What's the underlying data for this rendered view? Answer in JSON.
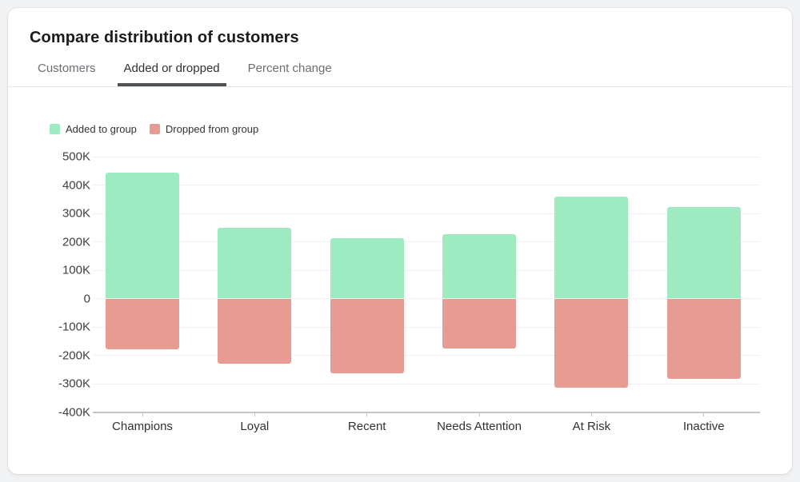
{
  "card": {
    "title": "Compare distribution of customers"
  },
  "tabs": {
    "items": [
      {
        "label": "Customers",
        "active": false
      },
      {
        "label": "Added or dropped",
        "active": true
      },
      {
        "label": "Percent change",
        "active": false
      }
    ]
  },
  "chart_data": {
    "type": "bar",
    "bar_style": "diverging",
    "title": "Compare distribution of customers",
    "categories": [
      "Champions",
      "Loyal",
      "Recent",
      "Needs Attention",
      "At Risk",
      "Inactive"
    ],
    "series": [
      {
        "name": "Added to group",
        "color": "#9EEBC1",
        "values": [
          445000,
          248000,
          214000,
          226000,
          358000,
          322000
        ]
      },
      {
        "name": "Dropped from group",
        "color": "#E89B93",
        "values": [
          -180000,
          -230000,
          -264000,
          -177000,
          -315000,
          -283000
        ]
      }
    ],
    "xlabel": "",
    "ylabel": "",
    "ylim": [
      -400000,
      500000
    ],
    "y_ticks": [
      500000,
      400000,
      300000,
      200000,
      100000,
      0,
      -100000,
      -200000,
      -300000,
      -400000
    ],
    "y_tick_labels": [
      "500K",
      "400K",
      "300K",
      "200K",
      "100K",
      "0",
      "-100K",
      "-200K",
      "-300K",
      "-400K"
    ],
    "grid": true,
    "legend_position": "top-left"
  },
  "colors": {
    "page_bg": "#F1F2F3",
    "card_bg": "#FFFFFF",
    "grid_line": "#EEF0F1",
    "axis_line": "#C3C6C9",
    "y_axis_text": "#3D4043",
    "x_axis_text": "#2F3235",
    "title_text": "#1A1C1D",
    "tab_inactive_text": "#6B6F73",
    "tab_active_text": "#2E3133",
    "tab_underline": "#505356",
    "legend_text": "#303336"
  }
}
